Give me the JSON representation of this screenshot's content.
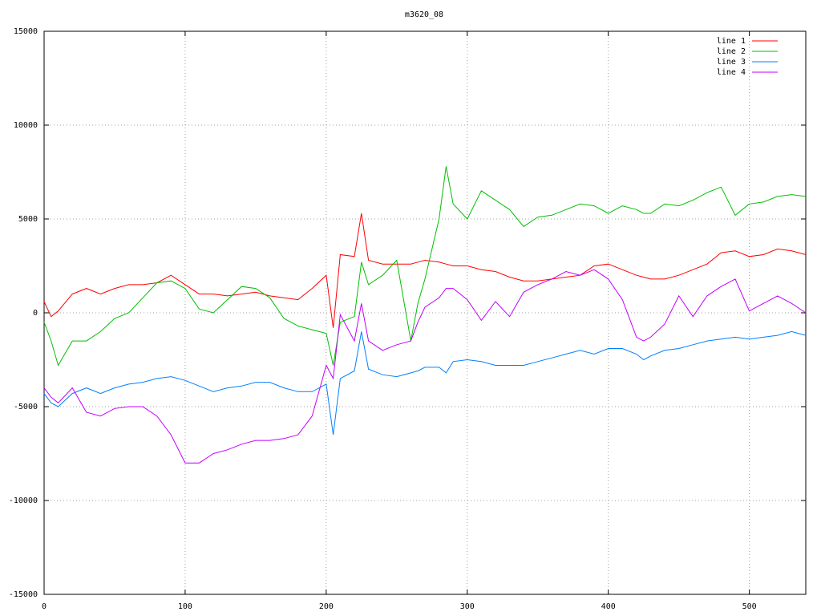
{
  "chart_data": {
    "type": "line",
    "title": "m3620_08",
    "x": [
      0,
      5,
      10,
      20,
      30,
      40,
      50,
      60,
      70,
      80,
      90,
      100,
      110,
      120,
      130,
      140,
      150,
      160,
      170,
      180,
      190,
      200,
      205,
      210,
      220,
      225,
      230,
      240,
      250,
      260,
      265,
      270,
      280,
      285,
      290,
      300,
      310,
      320,
      330,
      340,
      350,
      360,
      370,
      380,
      390,
      400,
      410,
      420,
      425,
      430,
      440,
      450,
      460,
      470,
      480,
      490,
      500,
      510,
      520,
      530,
      540
    ],
    "series": [
      {
        "name": "line 1",
        "color": "#ff0000",
        "values": [
          600,
          -200,
          100,
          1000,
          1300,
          1000,
          1300,
          1500,
          1500,
          1600,
          2000,
          1500,
          1000,
          1000,
          900,
          1000,
          1100,
          900,
          800,
          700,
          1300,
          2000,
          -800,
          3100,
          3000,
          5300,
          2800,
          2600,
          2600,
          2600,
          2700,
          2800,
          2700,
          2600,
          2500,
          2500,
          2300,
          2200,
          1900,
          1700,
          1700,
          1800,
          1900,
          2000,
          2500,
          2600,
          2300,
          2000,
          1900,
          1800,
          1800,
          2000,
          2300,
          2600,
          3200,
          3300,
          3000,
          3100,
          3400,
          3300,
          3100
        ]
      },
      {
        "name": "line 2",
        "color": "#00c000",
        "values": [
          -500,
          -1500,
          -2800,
          -1500,
          -1500,
          -1000,
          -300,
          0,
          800,
          1600,
          1700,
          1300,
          200,
          0,
          700,
          1400,
          1300,
          800,
          -300,
          -700,
          -900,
          -1100,
          -2800,
          -500,
          -200,
          2700,
          1500,
          2000,
          2800,
          -1500,
          500,
          1800,
          5000,
          7800,
          5800,
          5000,
          6500,
          6000,
          5500,
          4600,
          5100,
          5200,
          5500,
          5800,
          5700,
          5300,
          5700,
          5500,
          5300,
          5300,
          5800,
          5700,
          6000,
          6400,
          6700,
          5200,
          5800,
          5900,
          6200,
          6300,
          6200
        ]
      },
      {
        "name": "line 3",
        "color": "#0080ff",
        "values": [
          -4300,
          -4800,
          -5000,
          -4300,
          -4000,
          -4300,
          -4000,
          -3800,
          -3700,
          -3500,
          -3400,
          -3600,
          -3900,
          -4200,
          -4000,
          -3900,
          -3700,
          -3700,
          -4000,
          -4200,
          -4200,
          -3800,
          -6500,
          -3500,
          -3100,
          -1000,
          -3000,
          -3300,
          -3400,
          -3200,
          -3100,
          -2900,
          -2900,
          -3200,
          -2600,
          -2500,
          -2600,
          -2800,
          -2800,
          -2800,
          -2600,
          -2400,
          -2200,
          -2000,
          -2200,
          -1900,
          -1900,
          -2200,
          -2500,
          -2300,
          -2000,
          -1900,
          -1700,
          -1500,
          -1400,
          -1300,
          -1400,
          -1300,
          -1200,
          -1000,
          -1200
        ]
      },
      {
        "name": "line 4",
        "color": "#c000ff",
        "values": [
          -4000,
          -4500,
          -4800,
          -4000,
          -5300,
          -5500,
          -5100,
          -5000,
          -5000,
          -5500,
          -6500,
          -8000,
          -8000,
          -7500,
          -7300,
          -7000,
          -6800,
          -6800,
          -6700,
          -6500,
          -5500,
          -2800,
          -3500,
          -100,
          -1500,
          500,
          -1500,
          -2000,
          -1700,
          -1500,
          -500,
          300,
          800,
          1300,
          1300,
          700,
          -400,
          600,
          -200,
          1100,
          1500,
          1800,
          2200,
          2000,
          2300,
          1800,
          700,
          -1300,
          -1500,
          -1300,
          -600,
          900,
          -200,
          900,
          1400,
          1800,
          100,
          500,
          900,
          500,
          0
        ]
      }
    ],
    "xlim": [
      0,
      540
    ],
    "xticks": [
      0,
      100,
      200,
      300,
      400,
      500
    ],
    "ylim": [
      -15000,
      15000
    ],
    "yticks": [
      -15000,
      -10000,
      -5000,
      0,
      5000,
      10000,
      15000
    ],
    "grid": true,
    "legend": "top-right"
  }
}
